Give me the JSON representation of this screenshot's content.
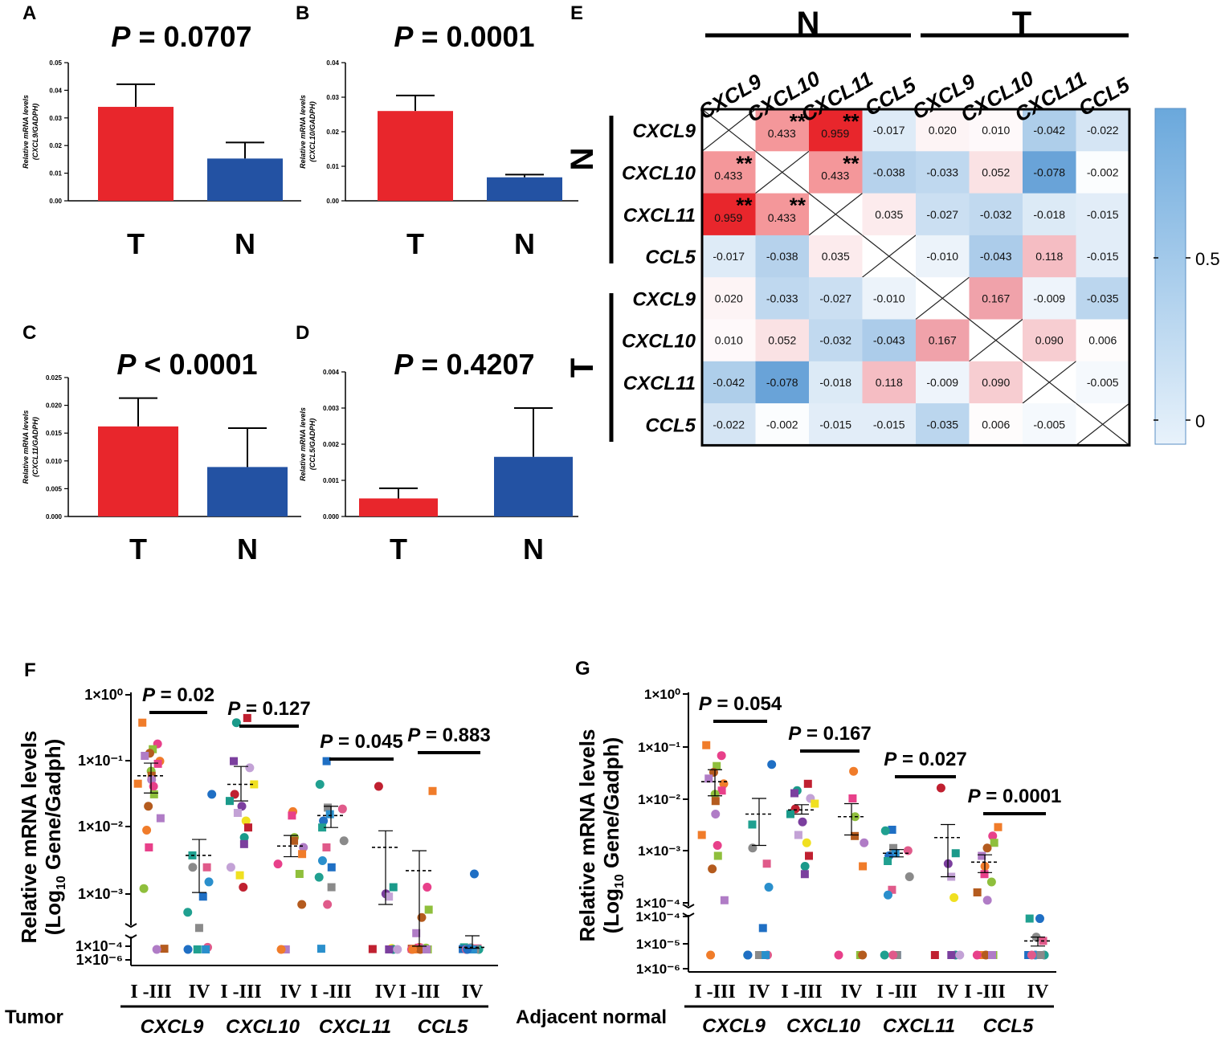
{
  "colors": {
    "tumor_bar": "#e8262c",
    "normal_bar": "#2352a3",
    "heat_pos_strong": "#e8262c",
    "heat_neg_strong": "#5b9bd5",
    "dot_palette": [
      "#f07c2a",
      "#7b3f9e",
      "#2a8fcc",
      "#e8408a",
      "#c3a2d6",
      "#1f6fc4",
      "#8fbf3c",
      "#f0e020",
      "#20a090",
      "#b45b1e",
      "#c02030",
      "#8a8a8a",
      "#b07cc6",
      "#1a9a8a",
      "#e05a8a"
    ]
  },
  "panels": {
    "A": "A",
    "B": "B",
    "C": "C",
    "D": "D",
    "E": "E",
    "F": "F",
    "G": "G"
  },
  "bar_axis_title": "Relative mRNA levels",
  "chart_data": [
    {
      "id": "A",
      "type": "bar",
      "title": "P = 0.0707",
      "title_p": "P",
      "title_rest": " = 0.0707",
      "ylabel_sub": "(CXCL9/GADPH)",
      "categories": [
        "T",
        "N"
      ],
      "values": [
        0.034,
        0.0153
      ],
      "errors": [
        0.0082,
        0.0058
      ],
      "ylim": [
        0,
        0.05
      ],
      "yticks": [
        0.0,
        0.01,
        0.02,
        0.03,
        0.04,
        0.05
      ],
      "ytick_labels": [
        "0.00",
        "0.01",
        "0.02",
        "0.03",
        "0.04",
        "0.05"
      ]
    },
    {
      "id": "B",
      "type": "bar",
      "title": "P = 0.0001",
      "title_p": "P",
      "title_rest": " = 0.0001",
      "ylabel_sub": "(CXCL10/GADPH)",
      "categories": [
        "T",
        "N"
      ],
      "values": [
        0.026,
        0.0068
      ],
      "errors": [
        0.0045,
        0.0008
      ],
      "ylim": [
        0,
        0.04
      ],
      "yticks": [
        0.0,
        0.01,
        0.02,
        0.03,
        0.04
      ],
      "ytick_labels": [
        "0.00",
        "0.01",
        "0.02",
        "0.03",
        "0.04"
      ]
    },
    {
      "id": "C",
      "type": "bar",
      "title": "P < 0.0001",
      "title_p": "P",
      "title_rest": " < 0.0001",
      "ylabel_sub": "(CXCL11/GADPH)",
      "categories": [
        "T",
        "N"
      ],
      "values": [
        0.0162,
        0.0089
      ],
      "errors": [
        0.0051,
        0.007
      ],
      "ylim": [
        0,
        0.025
      ],
      "yticks": [
        0.0,
        0.005,
        0.01,
        0.015,
        0.02,
        0.025
      ],
      "ytick_labels": [
        "0.000",
        "0.005",
        "0.010",
        "0.015",
        "0.020",
        "0.025"
      ]
    },
    {
      "id": "D",
      "type": "bar",
      "title": "P = 0.4207",
      "title_p": "P",
      "title_rest": " = 0.4207",
      "ylabel_sub": "(CCL5/GADPH)",
      "categories": [
        "T",
        "N"
      ],
      "values": [
        0.0005,
        0.00165
      ],
      "errors": [
        0.00028,
        0.00135
      ],
      "ylim": [
        0,
        0.004
      ],
      "yticks": [
        0.0,
        0.001,
        0.002,
        0.003,
        0.004
      ],
      "ytick_labels": [
        "0.000",
        "0.001",
        "0.002",
        "0.003",
        "0.004"
      ]
    },
    {
      "id": "E",
      "type": "heatmap",
      "group_labels": [
        "N",
        "T"
      ],
      "genes": [
        "CXCL9",
        "CXCL10",
        "CXCL11",
        "CCL5"
      ],
      "colorbar_ticks": [
        "0.5",
        "0"
      ],
      "significance_mark": "**",
      "matrix": [
        [
          null,
          0.433,
          0.959,
          -0.017,
          0.02,
          0.01,
          -0.042,
          -0.022
        ],
        [
          0.433,
          null,
          0.433,
          -0.038,
          -0.033,
          0.052,
          -0.078,
          -0.002
        ],
        [
          0.959,
          0.433,
          null,
          0.035,
          -0.027,
          -0.032,
          -0.018,
          -0.015
        ],
        [
          -0.017,
          -0.038,
          0.035,
          null,
          -0.01,
          -0.043,
          0.118,
          -0.015
        ],
        [
          0.02,
          -0.033,
          -0.027,
          -0.01,
          null,
          0.167,
          -0.009,
          -0.035
        ],
        [
          0.01,
          0.052,
          -0.032,
          -0.043,
          0.167,
          null,
          0.09,
          0.006
        ],
        [
          -0.042,
          -0.078,
          -0.018,
          0.118,
          -0.009,
          0.09,
          null,
          -0.005
        ],
        [
          -0.022,
          -0.002,
          -0.015,
          -0.015,
          -0.035,
          0.006,
          -0.005,
          null
        ]
      ],
      "labels": [
        [
          null,
          "0.433",
          "0.959",
          "-0.017",
          "0.020",
          "0.010",
          "-0.042",
          "-0.022"
        ],
        [
          "0.433",
          null,
          "0.433",
          "-0.038",
          "-0.033",
          "0.052",
          "-0.078",
          "-0.002"
        ],
        [
          "0.959",
          "0.433",
          null,
          "0.035",
          "-0.027",
          "-0.032",
          "-0.018",
          "-0.015"
        ],
        [
          "-0.017",
          "-0.038",
          "0.035",
          null,
          "-0.010",
          "-0.043",
          "0.118",
          "-0.015"
        ],
        [
          "0.020",
          "-0.033",
          "-0.027",
          "-0.010",
          null,
          "0.167",
          "-0.009",
          "-0.035"
        ],
        [
          "0.010",
          "0.052",
          "-0.032",
          "-0.043",
          "0.167",
          null,
          "0.090",
          "0.006"
        ],
        [
          "-0.042",
          "-0.078",
          "-0.018",
          "0.118",
          "-0.009",
          "0.090",
          null,
          "-0.005"
        ],
        [
          "-0.022",
          "-0.002",
          "-0.015",
          "-0.015",
          "-0.035",
          "0.006",
          "-0.005",
          null
        ]
      ],
      "significant": [
        [
          0,
          1
        ],
        [
          0,
          2
        ],
        [
          1,
          0
        ],
        [
          1,
          2
        ],
        [
          2,
          0
        ],
        [
          2,
          1
        ]
      ]
    },
    {
      "id": "F",
      "type": "scatter",
      "group_caption": "Tumor",
      "ylabel_line1": "Relative mRNA levels",
      "ylabel_line2_pre": "(Log",
      "ylabel_line2_sub": "10",
      "ylabel_line2_post": " Gene/Gadph)",
      "ytick_labels": [
        "1×10⁰",
        "1×10⁻¹",
        "1×10⁻²",
        "1×10⁻³",
        "1×10⁻⁴",
        "1×10⁻⁶"
      ],
      "stage_labels": [
        "I -III",
        "IV"
      ],
      "genes": [
        "CXCL9",
        "CXCL10",
        "CXCL11",
        "CCL5"
      ],
      "pvalues": [
        "0.02",
        "0.127",
        "0.045",
        "0.883"
      ],
      "groups": [
        {
          "gene": "CXCL9",
          "stage": "I-III",
          "mean_log": -1.22,
          "err_hi": -1.03,
          "err_lo": -1.48,
          "points": [
            -0.42,
            -0.74,
            -0.82,
            -0.88,
            -0.92,
            -1.0,
            -1.04,
            -1.15,
            -1.22,
            -1.28,
            -1.34,
            -1.38,
            -1.5,
            -1.68,
            -1.86,
            -2.04,
            -2.3,
            -2.92,
            -4.25,
            -4.35
          ]
        },
        {
          "gene": "CXCL9",
          "stage": "IV",
          "mean_log": -2.42,
          "err_hi": -2.18,
          "err_lo": -2.98,
          "points": [
            -1.5,
            -2.42,
            -2.6,
            -2.6,
            -2.82,
            -3.05,
            -3.35,
            -3.65,
            -4.05,
            -4.35,
            -4.35,
            -4.35
          ]
        },
        {
          "gene": "CXCL10",
          "stage": "I-III",
          "mean_log": -1.35,
          "err_hi": -1.08,
          "err_lo": -1.6,
          "points": [
            -0.35,
            -0.42,
            -1.0,
            -1.1,
            -1.35,
            -1.5,
            -1.6,
            -1.68,
            -1.78,
            -1.9,
            -2.0,
            -2.15,
            -2.25,
            -2.6,
            -2.72,
            -2.9
          ]
        },
        {
          "gene": "CXCL10",
          "stage": "IV",
          "mean_log": -2.28,
          "err_hi": -2.12,
          "err_lo": -2.44,
          "points": [
            -1.76,
            -1.82,
            -2.15,
            -2.2,
            -2.3,
            -2.4,
            -2.55,
            -2.7,
            -3.2,
            -4.35,
            -4.35
          ]
        },
        {
          "gene": "CXCL11",
          "stage": "I-III",
          "mean_log": -1.82,
          "err_hi": -1.68,
          "err_lo": -2.0,
          "points": [
            -1.0,
            -1.35,
            -1.7,
            -1.72,
            -1.8,
            -1.9,
            -2.0,
            -2.2,
            -2.3,
            -2.5,
            -2.6,
            -2.75,
            -2.9,
            -3.2,
            -4.25
          ]
        },
        {
          "gene": "CXCL11",
          "stage": "IV",
          "mean_log": -2.3,
          "err_hi": -2.05,
          "err_lo": -3.2,
          "points": [
            -1.38,
            -2.9,
            -3.0,
            -3.05,
            -4.2,
            -4.3,
            -4.35,
            -4.35,
            -4.35
          ]
        },
        {
          "gene": "CCL5",
          "stage": "I-III",
          "mean_log": -2.65,
          "err_hi": -2.35,
          "err_lo": -4.0,
          "points": [
            -1.45,
            -2.9,
            -3.3,
            -3.45,
            -3.75,
            -4.05,
            -4.1,
            -4.15,
            -4.25,
            -4.3,
            -4.35,
            -4.35,
            -4.35,
            -4.35,
            -4.35,
            -4.35
          ]
        },
        {
          "gene": "CCL5",
          "stage": "IV",
          "mean_log": -4.05,
          "err_hi": -3.8,
          "err_lo": -4.2,
          "points": [
            -2.7,
            -4.05,
            -4.1,
            -4.2,
            -4.25,
            -4.3,
            -4.35,
            -4.35,
            -4.35,
            -4.35,
            -4.35
          ]
        }
      ]
    },
    {
      "id": "G",
      "type": "scatter",
      "group_caption": "Adjacent normal",
      "ylabel_line1": "Relative mRNA levels",
      "ylabel_line2_pre": "(Log",
      "ylabel_line2_sub": "10",
      "ylabel_line2_post": " Gene/Gadph)",
      "ytick_labels": [
        "1×10⁰",
        "1×10⁻¹",
        "1×10⁻²",
        "1×10⁻³",
        "1×10⁻⁴",
        "1×10⁻⁴",
        "1×10⁻⁵",
        "1×10⁻⁶"
      ],
      "stage_labels": [
        "I -III",
        "IV"
      ],
      "genes": [
        "CXCL9",
        "CXCL10",
        "CXCL11",
        "CCL5"
      ],
      "pvalues": [
        "0.054",
        "0.167",
        "0.027",
        "0.0001"
      ],
      "groups": [
        {
          "gene": "CXCL9",
          "stage": "I-III",
          "mean_log": -1.68,
          "err_hi": -1.45,
          "err_lo": -1.95,
          "points": [
            -0.98,
            -1.18,
            -1.38,
            -1.5,
            -1.62,
            -1.72,
            -1.85,
            -1.92,
            -2.05,
            -2.3,
            -2.7,
            -2.9,
            -3.1,
            -3.35,
            -3.95,
            -5.5
          ]
        },
        {
          "gene": "CXCL9",
          "stage": "IV",
          "mean_log": -2.3,
          "err_hi": -2.0,
          "err_lo": -2.9,
          "points": [
            -1.35,
            -2.5,
            -2.95,
            -3.25,
            -3.7,
            -4.45,
            -5.5,
            -5.5,
            -5.5,
            -5.5,
            -5.5
          ]
        },
        {
          "gene": "CXCL10",
          "stage": "I-III",
          "mean_log": -2.22,
          "err_hi": -2.12,
          "err_lo": -2.3,
          "points": [
            -1.72,
            -1.85,
            -1.9,
            -2.0,
            -2.1,
            -2.2,
            -2.3,
            -2.45,
            -2.7,
            -2.85,
            -3.1,
            -3.3,
            -3.45
          ]
        },
        {
          "gene": "CXCL10",
          "stage": "IV",
          "mean_log": -2.35,
          "err_hi": -2.1,
          "err_lo": -2.7,
          "points": [
            -1.48,
            -2.0,
            -2.35,
            -2.72,
            -2.85,
            -3.3,
            -5.5,
            -5.5,
            -5.5
          ]
        },
        {
          "gene": "CXCL11",
          "stage": "I-III",
          "mean_log": -3.05,
          "err_hi": -2.98,
          "err_lo": -3.12,
          "points": [
            -2.6,
            -2.62,
            -2.95,
            -3.0,
            -3.05,
            -3.1,
            -3.2,
            -3.5,
            -3.75,
            -3.85,
            -5.5,
            -5.5,
            -5.5,
            -5.5
          ]
        },
        {
          "gene": "CXCL11",
          "stage": "IV",
          "mean_log": -2.75,
          "err_hi": -2.5,
          "err_lo": -3.5,
          "points": [
            -1.8,
            -3.05,
            -3.25,
            -3.5,
            -3.9,
            -5.5,
            -5.5,
            -5.5,
            -5.5
          ]
        },
        {
          "gene": "CCL5",
          "stage": "I-III",
          "mean_log": -3.22,
          "err_hi": -3.08,
          "err_lo": -3.42,
          "points": [
            -2.55,
            -2.72,
            -2.85,
            -2.95,
            -3.1,
            -3.3,
            -3.45,
            -3.6,
            -3.8,
            -3.95,
            -5.5,
            -5.5,
            -5.5,
            -5.5,
            -5.5
          ]
        },
        {
          "gene": "CCL5",
          "stage": "IV",
          "mean_log": -4.95,
          "err_hi": -4.8,
          "err_lo": -5.15,
          "points": [
            -4.08,
            -4.08,
            -4.8,
            -4.95,
            -5.5,
            -5.5,
            -5.5,
            -5.5,
            -5.5
          ]
        }
      ]
    }
  ]
}
